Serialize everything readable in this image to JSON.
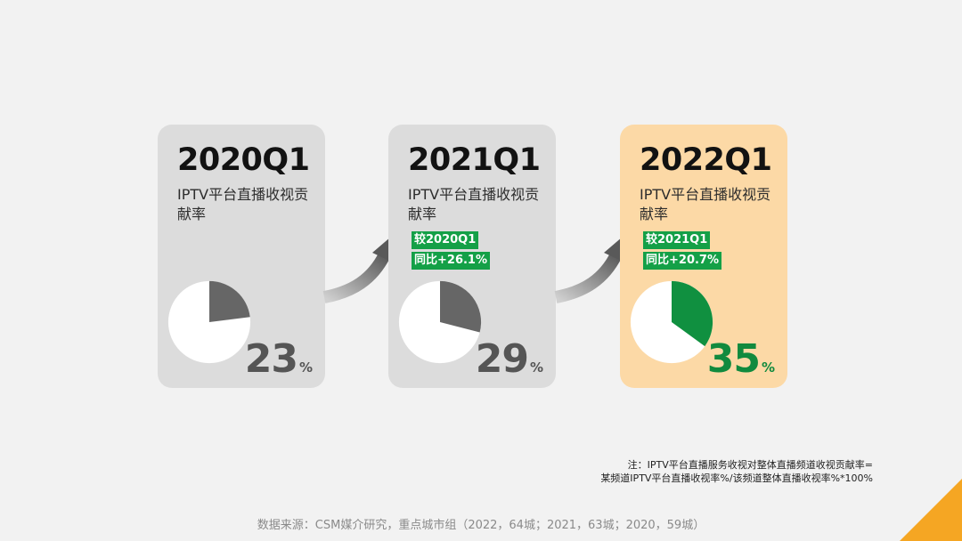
{
  "chart_data": [
    {
      "type": "pie",
      "label": "2020Q1",
      "subtitle": "IPTV平台直播收视贡献率",
      "value": 23,
      "unit": "%",
      "color": "#666666",
      "number_color": "#555555"
    },
    {
      "type": "pie",
      "label": "2021Q1",
      "subtitle": "IPTV平台直播收视贡献率",
      "value": 29,
      "unit": "%",
      "color": "#666666",
      "number_color": "#555555",
      "badges": [
        "较2020Q1",
        "同比+26.1%"
      ]
    },
    {
      "type": "pie",
      "label": "2022Q1",
      "subtitle": "IPTV平台直播收视贡献率",
      "value": 35,
      "unit": "%",
      "color": "#109040",
      "number_color": "#118a3e",
      "badges": [
        "较2021Q1",
        "同比+20.7%"
      ]
    }
  ],
  "footer": {
    "note_line1": "注：IPTV平台直播服务收视对整体直播频道收视贡献率=",
    "note_line2": "某频道IPTV平台直播收视率%/该频道整体直播收视率%*100%",
    "source": "数据来源：CSM媒介研究，重点城市组（2022，64城；2021，63城；2020，59城）"
  },
  "colors": {
    "card_bg": "#dcdcdc",
    "highlight_bg": "#fcd9a6",
    "badge_bg": "#14a047",
    "arrow": "#595959",
    "corner_accent": "#f5a623"
  }
}
